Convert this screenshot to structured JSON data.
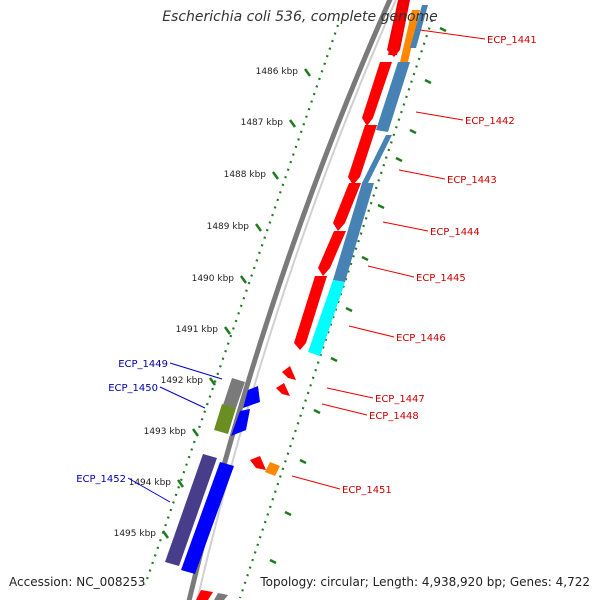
{
  "title": "Escherichia coli 536, complete genome",
  "accession_label": "Accession: NC_008253",
  "summary_label": "Topology: circular; Length: 4,938,920 bp; Genes: 4,722",
  "colors": {
    "forward_cds": "#ff0000",
    "reverse_cds": "#0000ff",
    "forward_label": "#cc0000",
    "reverse_label": "#0000aa",
    "backbone": "#888888",
    "tick": "#1e7b1e"
  },
  "ticks": [
    {
      "label": "1486 kbp"
    },
    {
      "label": "1487 kbp"
    },
    {
      "label": "1488 kbp"
    },
    {
      "label": "1489 kbp"
    },
    {
      "label": "1490 kbp"
    },
    {
      "label": "1491 kbp"
    },
    {
      "label": "1492 kbp"
    },
    {
      "label": "1493 kbp"
    },
    {
      "label": "1494 kbp"
    },
    {
      "label": "1495 kbp"
    }
  ],
  "genes": [
    {
      "id": "ECP_1441",
      "strand": "+"
    },
    {
      "id": "ECP_1442",
      "strand": "+"
    },
    {
      "id": "ECP_1443",
      "strand": "+"
    },
    {
      "id": "ECP_1444",
      "strand": "+"
    },
    {
      "id": "ECP_1445",
      "strand": "+"
    },
    {
      "id": "ECP_1446",
      "strand": "+"
    },
    {
      "id": "ECP_1447",
      "strand": "+"
    },
    {
      "id": "ECP_1448",
      "strand": "+"
    },
    {
      "id": "ECP_1449",
      "strand": "-"
    },
    {
      "id": "ECP_1450",
      "strand": "-"
    },
    {
      "id": "ECP_1451",
      "strand": "+"
    },
    {
      "id": "ECP_1452",
      "strand": "-"
    }
  ]
}
